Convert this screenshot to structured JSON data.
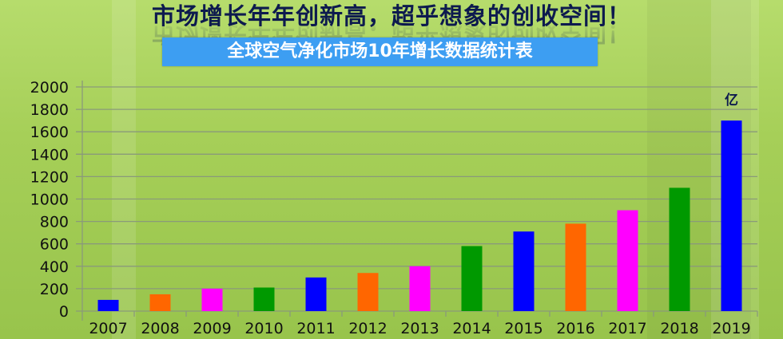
{
  "header": {
    "headline": "市场增长年年创新高，超乎想象的创收空间！",
    "subtitle": "全球空气净化市场10年增长数据统计表"
  },
  "chart_data": {
    "type": "bar",
    "title": "全球空气净化市场10年增长数据统计表",
    "unit_label": "亿",
    "categories": [
      "2007",
      "2008",
      "2009",
      "2010",
      "2011",
      "2012",
      "2013",
      "2014",
      "2015",
      "2016",
      "2017",
      "2018",
      "2019"
    ],
    "values": [
      100,
      150,
      200,
      210,
      300,
      340,
      400,
      580,
      710,
      780,
      900,
      1100,
      1700
    ],
    "colors": [
      "#0000ff",
      "#ff6600",
      "#ff00ff",
      "#009900",
      "#0000ff",
      "#ff6600",
      "#ff00ff",
      "#009900",
      "#0000ff",
      "#ff6600",
      "#ff00ff",
      "#009900",
      "#0000ff"
    ],
    "yticks": [
      "0",
      "200",
      "400",
      "600",
      "800",
      "1000",
      "1200",
      "1400",
      "1600",
      "1800",
      "2000"
    ],
    "ylim": [
      0,
      2000
    ],
    "grid": true,
    "legend": "none"
  }
}
